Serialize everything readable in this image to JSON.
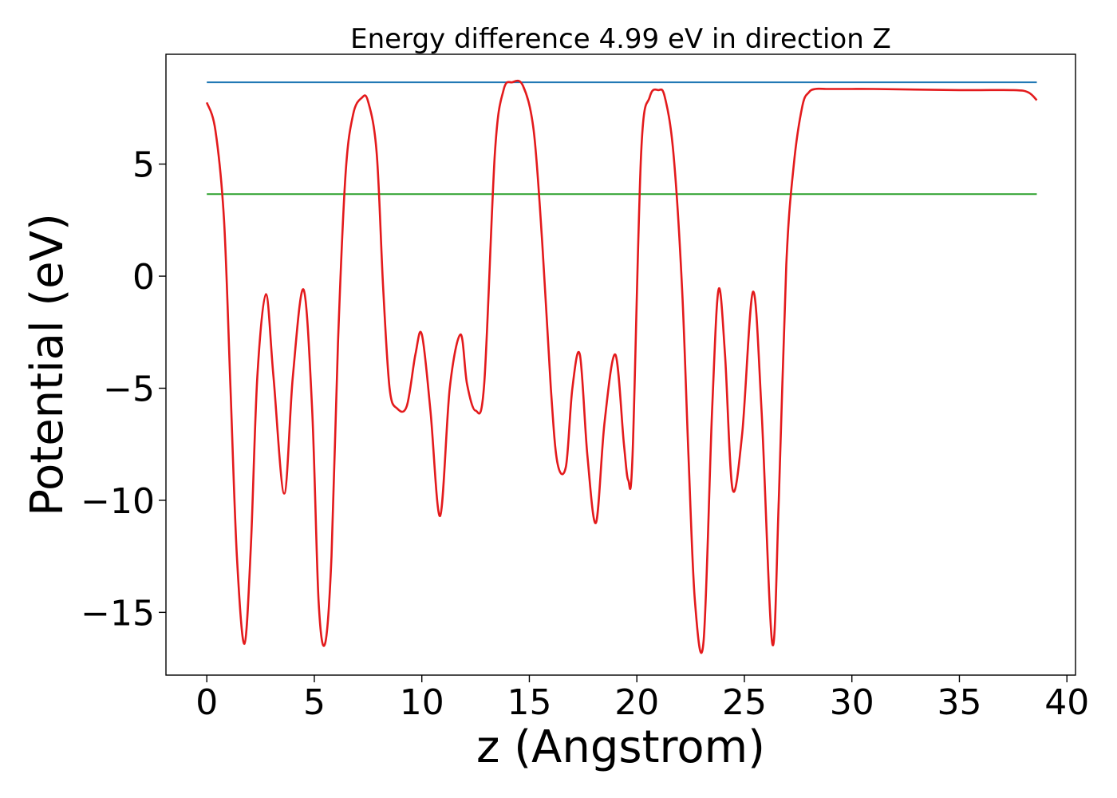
{
  "chart_data": {
    "type": "line",
    "title": "Energy difference 4.99 eV in direction Z",
    "xlabel": "z (Angstrom)",
    "ylabel": "Potential (eV)",
    "xlim": [
      -1.9,
      40.4
    ],
    "ylim": [
      -17.8,
      9.9
    ],
    "xticks": [
      0,
      5,
      10,
      15,
      20,
      25,
      30,
      35,
      40
    ],
    "xtick_labels": [
      "0",
      "5",
      "10",
      "15",
      "20",
      "25",
      "30",
      "35",
      "40"
    ],
    "yticks": [
      -15,
      -10,
      -5,
      0,
      5
    ],
    "ytick_labels": [
      "−15",
      "−10",
      "−5",
      "0",
      "5"
    ],
    "grid": false,
    "series": [
      {
        "color": "#1f77b4",
        "kind": "horizontal",
        "x": [
          0,
          38.6
        ],
        "y": [
          8.65,
          8.65
        ]
      },
      {
        "color": "#2ca02c",
        "kind": "horizontal",
        "x": [
          0,
          38.6
        ],
        "y": [
          3.66,
          3.66
        ]
      },
      {
        "color": "#e31a1c",
        "kind": "curve",
        "x": [
          0,
          0.4,
          0.8,
          1.1,
          1.4,
          1.75,
          2.05,
          2.35,
          2.75,
          3.1,
          3.6,
          4.0,
          4.5,
          4.9,
          5.2,
          5.5,
          5.8,
          6.1,
          6.45,
          6.8,
          7.2,
          7.5,
          7.9,
          8.2,
          8.5,
          8.85,
          9.3,
          9.7,
          10.0,
          10.4,
          10.85,
          11.3,
          11.8,
          12.1,
          12.5,
          12.9,
          13.4,
          13.8,
          14.2,
          14.7,
          15.2,
          15.6,
          16.0,
          16.3,
          16.7,
          17.0,
          17.35,
          17.7,
          18.1,
          18.5,
          19.0,
          19.4,
          19.6,
          19.8,
          20.2,
          20.6,
          21.0,
          21.3,
          21.7,
          22.1,
          22.4,
          22.7,
          23.1,
          23.5,
          23.8,
          24.1,
          24.45,
          24.9,
          25.4,
          25.8,
          26.3,
          26.6,
          26.95,
          27.3,
          27.7,
          28.0,
          28.3,
          28.8,
          29.3,
          30.0,
          31.0,
          35.0,
          37.5,
          38.2,
          38.6
        ],
        "y": [
          7.75,
          6.5,
          2.5,
          -5.0,
          -12.5,
          -16.4,
          -12.0,
          -4.5,
          -0.8,
          -4.5,
          -9.7,
          -4.5,
          -0.6,
          -6.0,
          -14.5,
          -16.4,
          -12.5,
          -3.0,
          4.5,
          7.2,
          7.95,
          7.8,
          5.5,
          -0.5,
          -5.0,
          -5.9,
          -5.8,
          -3.5,
          -2.6,
          -6.0,
          -10.7,
          -5.0,
          -2.6,
          -4.8,
          -6.0,
          -4.8,
          5.5,
          8.3,
          8.65,
          8.5,
          6.5,
          1.5,
          -5.0,
          -8.3,
          -8.5,
          -5.0,
          -3.5,
          -8.0,
          -11.0,
          -6.5,
          -3.5,
          -7.5,
          -9.1,
          -8.0,
          5.5,
          8.0,
          8.3,
          8.0,
          5.5,
          -0.5,
          -8.0,
          -14.5,
          -16.3,
          -6.0,
          -0.6,
          -3.5,
          -9.5,
          -7.0,
          -0.7,
          -6.0,
          -16.4,
          -10.0,
          0.5,
          5.0,
          7.6,
          8.2,
          8.35,
          8.35,
          8.35,
          8.35,
          8.35,
          8.3,
          8.3,
          8.2,
          7.85
        ]
      }
    ]
  }
}
